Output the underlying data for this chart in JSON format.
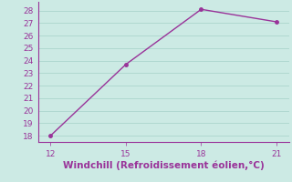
{
  "x": [
    12,
    15,
    18,
    21
  ],
  "y": [
    18,
    23.7,
    28.1,
    27.1
  ],
  "line_color": "#993399",
  "marker_color": "#993399",
  "background_color": "#cceae4",
  "grid_color": "#b0d8d0",
  "xlabel": "Windchill (Refroidissement éolien,°C)",
  "xlabel_color": "#993399",
  "tick_color": "#993399",
  "spine_color": "#993399",
  "xlim": [
    11.5,
    21.5
  ],
  "ylim": [
    17.5,
    28.7
  ],
  "xticks": [
    12,
    15,
    18,
    21
  ],
  "yticks": [
    18,
    19,
    20,
    21,
    22,
    23,
    24,
    25,
    26,
    27,
    28
  ],
  "xlabel_fontsize": 7.5,
  "tick_fontsize": 6.5,
  "linewidth": 1.0,
  "markersize": 2.5
}
